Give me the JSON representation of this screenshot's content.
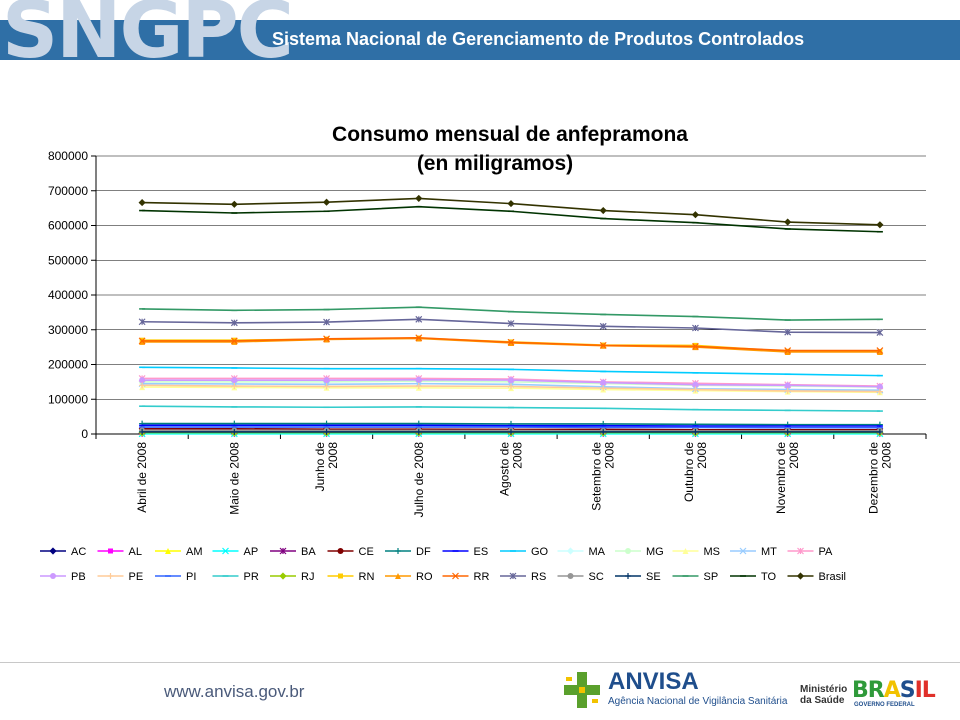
{
  "header": {
    "brand": "SNGPC",
    "title": "Sistema Nacional de Gerenciamento de Produtos Controlados"
  },
  "footer": {
    "url": "www.anvisa.gov.br",
    "anvisa_name": "ANVISA",
    "anvisa_subtitle": "Agência Nacional de Vigilância Sanitária",
    "ministerio_line1": "Ministério",
    "ministerio_line2": "da Saúde",
    "brasil_word": "BRASIL",
    "brasil_subtitle": "GOVERNO FEDERAL"
  },
  "colors": {
    "header_band": "#2f6fa6",
    "brand_text": "#c7d5e6"
  },
  "chart_data": {
    "type": "line",
    "title_line1": "Consumo mensual de anfepramona",
    "title_line2": "(en miligramos)",
    "xlabel": "",
    "ylabel": "",
    "ylim": [
      0,
      800000
    ],
    "y_ticks": [
      "0",
      "100000",
      "200000",
      "300000",
      "400000",
      "500000",
      "600000",
      "700000",
      "800000"
    ],
    "categories": [
      [
        "Abril de 2008"
      ],
      [
        "Maio de 2008"
      ],
      [
        "Junho de",
        "2008"
      ],
      [
        "Julho de 2008"
      ],
      [
        "Agosto de",
        "2008"
      ],
      [
        "Setembro de",
        "2008"
      ],
      [
        "Outubro de",
        "2008"
      ],
      [
        "Novembro de",
        "2008"
      ],
      [
        "Dezembro de",
        "2008"
      ]
    ],
    "grid": "horizontal",
    "legend_position": "bottom",
    "series": [
      {
        "name": "AC",
        "color": "#000080",
        "marker": "diamond",
        "values": [
          2000,
          2000,
          2000,
          2000,
          2000,
          2000,
          2000,
          2000,
          2000
        ]
      },
      {
        "name": "AL",
        "color": "#ff00ff",
        "marker": "square",
        "values": [
          1000,
          1000,
          1000,
          1000,
          1000,
          1000,
          1000,
          1000,
          1000
        ]
      },
      {
        "name": "AM",
        "color": "#ffff00",
        "marker": "triangle",
        "values": [
          3000,
          3000,
          3000,
          3000,
          3000,
          3000,
          3000,
          3000,
          3000
        ]
      },
      {
        "name": "AP",
        "color": "#00ffff",
        "marker": "x",
        "values": [
          500,
          500,
          500,
          500,
          500,
          500,
          500,
          500,
          500
        ]
      },
      {
        "name": "BA",
        "color": "#800080",
        "marker": "star",
        "values": [
          8000,
          8000,
          8000,
          8000,
          8000,
          8000,
          8000,
          8000,
          8000
        ]
      },
      {
        "name": "CE",
        "color": "#800000",
        "marker": "circle",
        "values": [
          15000,
          15000,
          14000,
          14000,
          13000,
          13000,
          12000,
          12000,
          12000
        ]
      },
      {
        "name": "DF",
        "color": "#008080",
        "marker": "plus",
        "values": [
          30000,
          30000,
          30000,
          30000,
          29000,
          29000,
          28000,
          27000,
          27000
        ]
      },
      {
        "name": "ES",
        "color": "#0000ff",
        "marker": "dash",
        "values": [
          25000,
          25000,
          25000,
          25000,
          24000,
          24000,
          23000,
          23000,
          23000
        ]
      },
      {
        "name": "GO",
        "color": "#00ccff",
        "marker": "dash",
        "values": [
          192000,
          190000,
          188000,
          188000,
          186000,
          180000,
          176000,
          172000,
          168000
        ]
      },
      {
        "name": "MA",
        "color": "#ccffff",
        "marker": "diamond",
        "values": [
          5000,
          5000,
          5000,
          5000,
          5000,
          5000,
          5000,
          5000,
          5000
        ]
      },
      {
        "name": "MG",
        "color": "#ccffcc",
        "marker": "circle",
        "values": [
          150000,
          150000,
          150000,
          152000,
          150000,
          145000,
          140000,
          138000,
          135000
        ]
      },
      {
        "name": "MS",
        "color": "#ffff99",
        "marker": "triangle",
        "values": [
          135000,
          134000,
          133000,
          133000,
          132000,
          128000,
          125000,
          122000,
          120000
        ]
      },
      {
        "name": "MT",
        "color": "#99ccff",
        "marker": "x",
        "values": [
          145000,
          144000,
          143000,
          145000,
          143000,
          136000,
          130000,
          128000,
          126000
        ]
      },
      {
        "name": "PA",
        "color": "#ff99cc",
        "marker": "star",
        "values": [
          160000,
          160000,
          160000,
          160000,
          158000,
          150000,
          146000,
          142000,
          138000
        ]
      },
      {
        "name": "PB",
        "color": "#cc99ff",
        "marker": "circle",
        "values": [
          155000,
          155000,
          155000,
          156000,
          155000,
          148000,
          142000,
          140000,
          136000
        ]
      },
      {
        "name": "PE",
        "color": "#ffcc99",
        "marker": "plus",
        "values": [
          140000,
          138000,
          137000,
          138000,
          137000,
          132000,
          128000,
          124000,
          122000
        ]
      },
      {
        "name": "PI",
        "color": "#3366ff",
        "marker": "dash",
        "values": [
          20000,
          20000,
          20000,
          20000,
          20000,
          19000,
          19000,
          18000,
          18000
        ]
      },
      {
        "name": "PR",
        "color": "#33cccc",
        "marker": "dash",
        "values": [
          80000,
          78000,
          77000,
          78000,
          76000,
          74000,
          70000,
          68000,
          66000
        ]
      },
      {
        "name": "RJ",
        "color": "#99cc00",
        "marker": "diamond",
        "values": [
          4000,
          4000,
          4000,
          4000,
          4000,
          4000,
          4000,
          4000,
          4000
        ]
      },
      {
        "name": "RN",
        "color": "#ffcc00",
        "marker": "square",
        "values": [
          270000,
          270000,
          273000,
          276000,
          265000,
          256000,
          255000,
          238000,
          237000
        ]
      },
      {
        "name": "RO",
        "color": "#ff9900",
        "marker": "triangle",
        "values": [
          265000,
          265000,
          272000,
          275000,
          262000,
          254000,
          250000,
          236000,
          236000
        ]
      },
      {
        "name": "RR",
        "color": "#ff6600",
        "marker": "x",
        "values": [
          268000,
          268000,
          274000,
          277000,
          264000,
          255000,
          252000,
          240000,
          240000
        ]
      },
      {
        "name": "RS",
        "color": "#666699",
        "marker": "star",
        "values": [
          323000,
          320000,
          322000,
          330000,
          318000,
          310000,
          305000,
          293000,
          292000
        ]
      },
      {
        "name": "SC",
        "color": "#969696",
        "marker": "circle",
        "values": [
          10000,
          10000,
          10000,
          10000,
          10000,
          9000,
          9000,
          9000,
          9000
        ]
      },
      {
        "name": "SE",
        "color": "#003366",
        "marker": "plus",
        "values": [
          6000,
          6000,
          6000,
          6000,
          6000,
          6000,
          6000,
          6000,
          6000
        ]
      },
      {
        "name": "SP",
        "color": "#339966",
        "marker": "dash",
        "values": [
          360000,
          356000,
          358000,
          365000,
          352000,
          344000,
          338000,
          328000,
          330000
        ]
      },
      {
        "name": "TO",
        "color": "#003300",
        "marker": "dash",
        "values": [
          643000,
          636000,
          641000,
          654000,
          641000,
          620000,
          608000,
          590000,
          582000
        ]
      },
      {
        "name": "Brasil",
        "color": "#333300",
        "marker": "diamond",
        "values": [
          666000,
          661000,
          667000,
          678000,
          663000,
          643000,
          631000,
          610000,
          602000
        ]
      }
    ]
  }
}
